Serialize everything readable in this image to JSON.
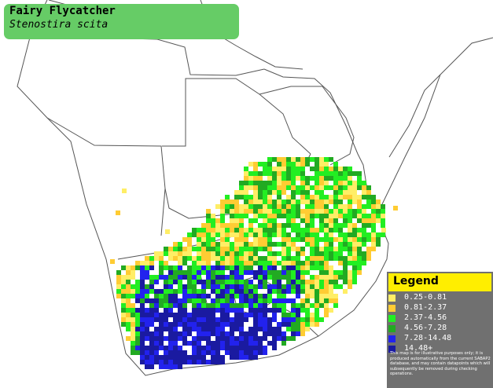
{
  "title": {
    "common_name": "Fairy Flycatcher",
    "scientific_name": "Stenostira scita"
  },
  "legend": {
    "heading": "Legend",
    "items": [
      {
        "label": "0.25-0.81",
        "color": "#ffee66"
      },
      {
        "label": "0.81-2.37",
        "color": "#ffcc33"
      },
      {
        "label": "2.37-4.56",
        "color": "#22ee22"
      },
      {
        "label": "4.56-7.28",
        "color": "#22aa22"
      },
      {
        "label": "7.28-14.48",
        "color": "#2222ee"
      },
      {
        "label": "14.48+",
        "color": "#1a1aa0"
      }
    ],
    "disclaimer": "This map is for illustrative purposes only; it is produced automatically from the current SABAP2 database, and may contain datapoints which will subsequently be removed during checking operations."
  }
}
